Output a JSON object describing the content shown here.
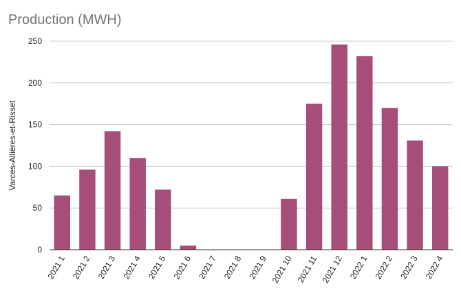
{
  "chart_data": {
    "type": "bar",
    "title": "Production (MWH)",
    "xlabel": "",
    "ylabel": "Varces-Allières-et-Risset",
    "categories": [
      "2021 1",
      "2021 2",
      "2021 3",
      "2021 4",
      "2021 5",
      "2021 6",
      "2021 7",
      "2021 8",
      "2021 9",
      "2021 10",
      "2021 11",
      "2021 12",
      "2022 1",
      "2022 2",
      "2022 3",
      "2022 4"
    ],
    "values": [
      65,
      96,
      142,
      110,
      72,
      5,
      0,
      0,
      0,
      61,
      175,
      246,
      232,
      170,
      131,
      100
    ],
    "ylim": [
      0,
      250
    ],
    "yticks": [
      0,
      50,
      100,
      150,
      200,
      250
    ],
    "grid": true,
    "legend": "none",
    "bar_color": "#a64d79",
    "grid_color": "#cccccc",
    "axis_color": "#333333"
  }
}
